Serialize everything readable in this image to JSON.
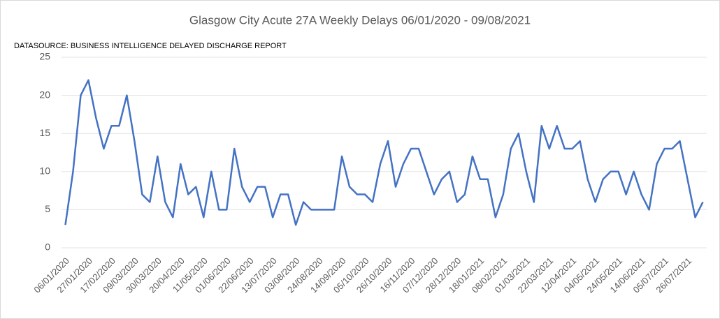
{
  "chart_data": {
    "type": "line",
    "title": "Glasgow City Acute 27A Weekly Delays 06/01/2020 - 09/08/2021",
    "subtitle": "DATASOURCE: BUSINESS INTELLIGENCE DELAYED DISCHARGE REPORT",
    "categories": [
      "06/01/2020",
      null,
      null,
      "27/01/2020",
      null,
      null,
      "17/02/2020",
      null,
      null,
      "09/03/2020",
      null,
      null,
      "30/03/2020",
      null,
      null,
      "20/04/2020",
      null,
      null,
      "11/05/2020",
      null,
      null,
      "01/06/2020",
      null,
      null,
      "22/06/2020",
      null,
      null,
      "13/07/2020",
      null,
      null,
      "03/08/2020",
      null,
      null,
      "24/08/2020",
      null,
      null,
      "14/09/2020",
      null,
      null,
      "05/10/2020",
      null,
      null,
      "26/10/2020",
      null,
      null,
      "16/11/2020",
      null,
      null,
      "07/12/2020",
      null,
      null,
      "28/12/2020",
      null,
      null,
      "18/01/2021",
      null,
      null,
      "08/02/2021",
      null,
      null,
      "01/03/2021",
      null,
      null,
      "22/03/2021",
      null,
      null,
      "12/04/2021",
      null,
      null,
      "04/05/2021",
      null,
      null,
      "24/05/2021",
      null,
      null,
      "14/06/2021",
      null,
      null,
      "05/07/2021",
      null,
      null,
      "26/07/2021",
      null,
      null
    ],
    "values": [
      3,
      10,
      20,
      22,
      17,
      13,
      16,
      16,
      20,
      14,
      7,
      6,
      12,
      6,
      4,
      11,
      7,
      8,
      4,
      10,
      5,
      5,
      13,
      8,
      6,
      8,
      8,
      4,
      7,
      7,
      3,
      6,
      5,
      5,
      5,
      5,
      12,
      8,
      7,
      7,
      6,
      11,
      14,
      8,
      11,
      13,
      13,
      10,
      7,
      9,
      10,
      6,
      7,
      12,
      9,
      9,
      4,
      7,
      13,
      15,
      10,
      6,
      16,
      13,
      16,
      13,
      13,
      14,
      9,
      6,
      9,
      10,
      10,
      7,
      10,
      7,
      5,
      11,
      13,
      13,
      14,
      9,
      4,
      6
    ],
    "color": "#4472c4",
    "ylim": [
      0,
      25
    ],
    "yticks": [
      0,
      5,
      10,
      15,
      20,
      25
    ],
    "grid": true
  }
}
